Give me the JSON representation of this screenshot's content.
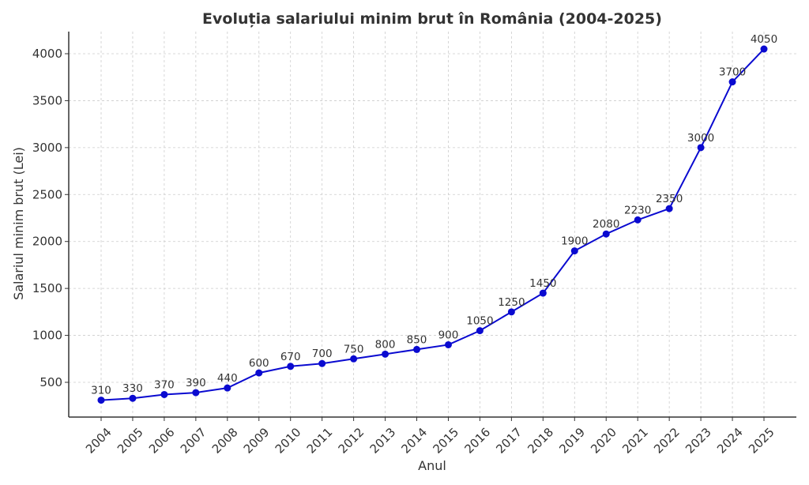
{
  "chart_data": {
    "type": "line",
    "title": "Evoluția salariului minim brut în România (2004-2025)",
    "xlabel": "Anul",
    "ylabel": "Salariul minim brut (Lei)",
    "x": [
      "2004",
      "2005",
      "2006",
      "2007",
      "2008",
      "2009",
      "2010",
      "2011",
      "2012",
      "2013",
      "2014",
      "2015",
      "2016",
      "2017",
      "2018",
      "2019",
      "2020",
      "2021",
      "2022",
      "2023",
      "2024",
      "2025"
    ],
    "series": [
      {
        "name": "Salariul minim brut",
        "values": [
          310,
          330,
          370,
          390,
          440,
          600,
          670,
          700,
          750,
          800,
          850,
          900,
          1050,
          1250,
          1450,
          1900,
          2080,
          2230,
          2350,
          3000,
          3700,
          4050
        ],
        "color": "#0a0ad0"
      }
    ],
    "yticks": [
      500,
      1000,
      1500,
      2000,
      2500,
      3000,
      3500,
      4000
    ],
    "ylim": [
      140,
      4230
    ],
    "grid": true,
    "legend": "none"
  }
}
